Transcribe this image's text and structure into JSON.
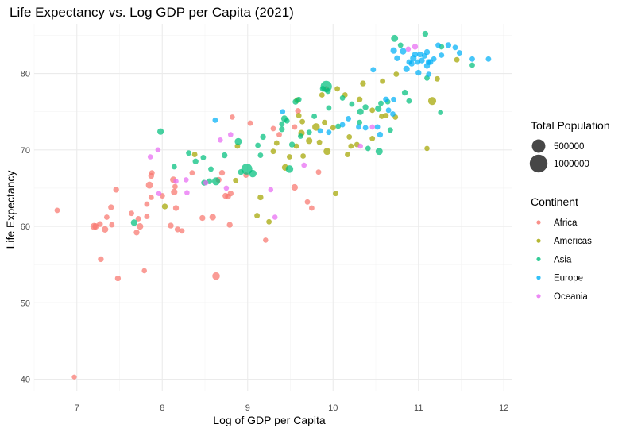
{
  "chart_data": {
    "type": "scatter",
    "title": "Life Expectancy vs. Log GDP per Capita (2021)",
    "xlabel": "Log of GDP per Capita",
    "ylabel": "Life Expectancy",
    "xlim": [
      6.5,
      12.1
    ],
    "ylim": [
      38.5,
      86.5
    ],
    "x_ticks": [
      7,
      8,
      9,
      10,
      11,
      12
    ],
    "y_ticks": [
      40,
      50,
      60,
      70,
      80
    ],
    "grid": true,
    "legend_placement": "right",
    "legend_size": {
      "title": "Total Population",
      "entries": [
        {
          "label": "500000",
          "value": 500000
        },
        {
          "label": "1000000",
          "value": 1000000
        }
      ]
    },
    "legend_color": {
      "title": "Continent",
      "entries": [
        {
          "label": "Africa",
          "color": "#F8766D"
        },
        {
          "label": "Americas",
          "color": "#A3A500"
        },
        {
          "label": "Asia",
          "color": "#00BF7D"
        },
        {
          "label": "Europe",
          "color": "#00B0F6"
        },
        {
          "label": "Oceania",
          "color": "#E76BF3"
        }
      ]
    },
    "series": [
      {
        "continent": "Africa",
        "points": [
          [
            6.77,
            62.1,
            30000
          ],
          [
            6.97,
            40.3,
            20000
          ],
          [
            7.2,
            60.0,
            80000
          ],
          [
            7.22,
            60.0,
            60000
          ],
          [
            7.27,
            60.3,
            40000
          ],
          [
            7.28,
            55.7,
            40000
          ],
          [
            7.33,
            59.6,
            60000
          ],
          [
            7.35,
            61.2,
            30000
          ],
          [
            7.4,
            62.5,
            40000
          ],
          [
            7.41,
            60.2,
            30000
          ],
          [
            7.46,
            64.8,
            40000
          ],
          [
            7.48,
            53.2,
            40000
          ],
          [
            7.64,
            61.7,
            30000
          ],
          [
            7.7,
            59.2,
            40000
          ],
          [
            7.72,
            61.0,
            30000
          ],
          [
            7.74,
            60.0,
            60000
          ],
          [
            7.79,
            54.2,
            25000
          ],
          [
            7.82,
            62.9,
            30000
          ],
          [
            7.82,
            61.3,
            30000
          ],
          [
            7.85,
            65.4,
            80000
          ],
          [
            7.87,
            66.6,
            40000
          ],
          [
            7.88,
            67.0,
            30000
          ],
          [
            7.87,
            63.8,
            30000
          ],
          [
            8.0,
            64.0,
            30000
          ],
          [
            8.1,
            60.1,
            40000
          ],
          [
            8.13,
            66.1,
            60000
          ],
          [
            8.14,
            64.5,
            60000
          ],
          [
            8.15,
            65.2,
            30000
          ],
          [
            8.16,
            62.4,
            40000
          ],
          [
            8.18,
            59.6,
            40000
          ],
          [
            8.23,
            59.4,
            30000
          ],
          [
            8.35,
            67.0,
            30000
          ],
          [
            8.47,
            61.1,
            40000
          ],
          [
            8.59,
            61.2,
            60000
          ],
          [
            8.63,
            53.5,
            100000
          ],
          [
            8.66,
            66.1,
            40000
          ],
          [
            8.7,
            67.0,
            40000
          ],
          [
            8.74,
            64.0,
            40000
          ],
          [
            8.77,
            63.9,
            40000
          ],
          [
            8.79,
            60.2,
            40000
          ],
          [
            8.8,
            64.3,
            40000
          ],
          [
            8.82,
            74.3,
            25000
          ],
          [
            8.98,
            66.7,
            30000
          ],
          [
            9.03,
            73.5,
            30000
          ],
          [
            9.21,
            58.2,
            25000
          ],
          [
            9.3,
            72.8,
            30000
          ],
          [
            9.37,
            72.0,
            30000
          ],
          [
            9.55,
            73.0,
            30000
          ],
          [
            9.59,
            75.1,
            40000
          ],
          [
            9.55,
            65.1,
            60000
          ],
          [
            9.7,
            63.2,
            30000
          ],
          [
            9.75,
            62.4,
            30000
          ],
          [
            9.83,
            67.1,
            30000
          ],
          [
            9.92,
            78.0,
            30000
          ]
        ]
      },
      {
        "continent": "Americas",
        "points": [
          [
            8.03,
            62.6,
            40000
          ],
          [
            8.38,
            69.4,
            30000
          ],
          [
            8.86,
            66.0,
            30000
          ],
          [
            8.88,
            70.5,
            30000
          ],
          [
            9.11,
            61.4,
            30000
          ],
          [
            9.15,
            63.8,
            40000
          ],
          [
            9.25,
            60.6,
            30000
          ],
          [
            9.3,
            69.8,
            30000
          ],
          [
            9.34,
            70.9,
            30000
          ],
          [
            9.44,
            67.7,
            60000
          ],
          [
            9.49,
            69.1,
            30000
          ],
          [
            9.57,
            70.5,
            30000
          ],
          [
            9.58,
            76.5,
            40000
          ],
          [
            9.6,
            74.5,
            30000
          ],
          [
            9.63,
            72.2,
            60000
          ],
          [
            9.64,
            73.7,
            30000
          ],
          [
            9.65,
            69.2,
            30000
          ],
          [
            9.72,
            71.2,
            60000
          ],
          [
            9.8,
            73.0,
            100000
          ],
          [
            9.84,
            71.0,
            30000
          ],
          [
            9.87,
            77.2,
            30000
          ],
          [
            9.9,
            73.6,
            30000
          ],
          [
            9.93,
            69.8,
            80000
          ],
          [
            10.0,
            72.9,
            30000
          ],
          [
            10.03,
            64.3,
            30000
          ],
          [
            10.05,
            78.0,
            30000
          ],
          [
            10.14,
            77.2,
            30000
          ],
          [
            10.17,
            69.4,
            30000
          ],
          [
            10.19,
            71.7,
            30000
          ],
          [
            10.21,
            70.5,
            30000
          ],
          [
            10.28,
            70.7,
            30000
          ],
          [
            10.31,
            76.6,
            40000
          ],
          [
            10.35,
            78.7,
            40000
          ],
          [
            10.46,
            75.2,
            30000
          ],
          [
            10.46,
            71.5,
            30000
          ],
          [
            10.57,
            74.4,
            30000
          ],
          [
            10.58,
            79.0,
            30000
          ],
          [
            10.62,
            74.5,
            30000
          ],
          [
            10.73,
            74.3,
            30000
          ],
          [
            10.74,
            79.9,
            30000
          ],
          [
            11.1,
            70.2,
            25000
          ],
          [
            11.16,
            76.4,
            120000
          ],
          [
            11.22,
            79.3,
            30000
          ],
          [
            11.45,
            81.8,
            30000
          ]
        ]
      },
      {
        "continent": "Asia",
        "points": [
          [
            7.67,
            60.5,
            60000
          ],
          [
            7.98,
            72.4,
            60000
          ],
          [
            8.14,
            67.8,
            30000
          ],
          [
            8.31,
            69.6,
            30000
          ],
          [
            8.39,
            68.5,
            40000
          ],
          [
            8.48,
            69.0,
            30000
          ],
          [
            8.49,
            65.7,
            40000
          ],
          [
            8.55,
            65.9,
            40000
          ],
          [
            8.57,
            67.5,
            30000
          ],
          [
            8.63,
            65.9,
            120000
          ],
          [
            8.73,
            69.3,
            40000
          ],
          [
            8.89,
            71.1,
            80000
          ],
          [
            8.92,
            67.1,
            40000
          ],
          [
            8.99,
            67.5,
            300000
          ],
          [
            9.06,
            66.9,
            100000
          ],
          [
            9.12,
            70.6,
            30000
          ],
          [
            9.15,
            69.3,
            30000
          ],
          [
            9.18,
            71.7,
            40000
          ],
          [
            9.4,
            73.4,
            30000
          ],
          [
            9.4,
            72.7,
            40000
          ],
          [
            9.43,
            74.1,
            60000
          ],
          [
            9.46,
            73.8,
            30000
          ],
          [
            9.49,
            67.5,
            100000
          ],
          [
            9.52,
            70.7,
            40000
          ],
          [
            9.56,
            76.3,
            40000
          ],
          [
            9.6,
            76.6,
            30000
          ],
          [
            9.62,
            71.8,
            30000
          ],
          [
            9.72,
            72.3,
            30000
          ],
          [
            9.78,
            74.4,
            30000
          ],
          [
            9.88,
            78.0,
            40000
          ],
          [
            9.92,
            78.3,
            320000
          ],
          [
            9.94,
            77.7,
            40000
          ],
          [
            9.95,
            75.5,
            30000
          ],
          [
            10.06,
            73.1,
            30000
          ],
          [
            10.11,
            76.8,
            30000
          ],
          [
            10.22,
            76.0,
            30000
          ],
          [
            10.31,
            73.6,
            30000
          ],
          [
            10.32,
            75.0,
            60000
          ],
          [
            10.38,
            75.6,
            40000
          ],
          [
            10.41,
            70.2,
            30000
          ],
          [
            10.53,
            75.4,
            60000
          ],
          [
            10.54,
            69.8,
            80000
          ],
          [
            10.56,
            76.1,
            30000
          ],
          [
            10.64,
            76.3,
            30000
          ],
          [
            10.67,
            72.6,
            30000
          ],
          [
            10.72,
            84.6,
            80000
          ],
          [
            10.79,
            83.7,
            30000
          ],
          [
            10.84,
            77.5,
            40000
          ],
          [
            10.89,
            76.4,
            30000
          ],
          [
            11.1,
            79.4,
            30000
          ],
          [
            11.08,
            85.2,
            40000
          ],
          [
            11.26,
            74.9,
            25000
          ],
          [
            11.27,
            83.5,
            30000
          ],
          [
            11.63,
            81.1,
            30000
          ]
        ]
      },
      {
        "continent": "Europe",
        "points": [
          [
            8.62,
            73.9,
            30000
          ],
          [
            9.41,
            75.0,
            25000
          ],
          [
            9.85,
            72.5,
            30000
          ],
          [
            9.95,
            72.3,
            30000
          ],
          [
            10.11,
            73.3,
            30000
          ],
          [
            10.18,
            74.1,
            30000
          ],
          [
            10.3,
            73.0,
            30000
          ],
          [
            10.38,
            72.9,
            30000
          ],
          [
            10.47,
            80.5,
            30000
          ],
          [
            10.52,
            73.0,
            30000
          ],
          [
            10.55,
            72.0,
            40000
          ],
          [
            10.62,
            76.6,
            40000
          ],
          [
            10.65,
            75.2,
            30000
          ],
          [
            10.7,
            74.7,
            30000
          ],
          [
            10.71,
            83.0,
            60000
          ],
          [
            10.71,
            76.6,
            30000
          ],
          [
            10.75,
            82.0,
            40000
          ],
          [
            10.82,
            82.9,
            60000
          ],
          [
            10.86,
            80.6,
            60000
          ],
          [
            10.89,
            81.5,
            30000
          ],
          [
            10.92,
            81.3,
            40000
          ],
          [
            10.94,
            82.0,
            60000
          ],
          [
            10.96,
            82.5,
            40000
          ],
          [
            10.99,
            81.5,
            30000
          ],
          [
            11.0,
            80.1,
            40000
          ],
          [
            11.02,
            82.5,
            40000
          ],
          [
            11.04,
            81.7,
            40000
          ],
          [
            11.07,
            82.3,
            30000
          ],
          [
            11.1,
            82.8,
            40000
          ],
          [
            11.1,
            81.0,
            40000
          ],
          [
            11.12,
            81.5,
            40000
          ],
          [
            11.12,
            79.9,
            25000
          ],
          [
            11.14,
            81.5,
            40000
          ],
          [
            11.18,
            81.9,
            30000
          ],
          [
            11.23,
            83.7,
            30000
          ],
          [
            11.27,
            82.4,
            30000
          ],
          [
            11.35,
            83.7,
            40000
          ],
          [
            11.43,
            83.4,
            30000
          ],
          [
            11.48,
            82.7,
            30000
          ],
          [
            11.63,
            81.9,
            30000
          ],
          [
            11.82,
            81.9,
            30000
          ]
        ]
      },
      {
        "continent": "Oceania",
        "points": [
          [
            7.86,
            69.1,
            25000
          ],
          [
            7.95,
            70.0,
            25000
          ],
          [
            7.96,
            64.3,
            25000
          ],
          [
            8.16,
            65.9,
            25000
          ],
          [
            8.28,
            66.1,
            25000
          ],
          [
            8.29,
            64.4,
            25000
          ],
          [
            8.51,
            65.7,
            25000
          ],
          [
            8.68,
            71.3,
            25000
          ],
          [
            8.75,
            65.0,
            25000
          ],
          [
            8.8,
            72.0,
            25000
          ],
          [
            9.27,
            64.8,
            25000
          ],
          [
            9.32,
            61.2,
            25000
          ],
          [
            9.66,
            68.0,
            25000
          ],
          [
            10.32,
            70.5,
            25000
          ],
          [
            10.46,
            73.0,
            25000
          ],
          [
            10.88,
            83.2,
            25000
          ],
          [
            10.96,
            83.5,
            40000
          ]
        ]
      }
    ]
  }
}
